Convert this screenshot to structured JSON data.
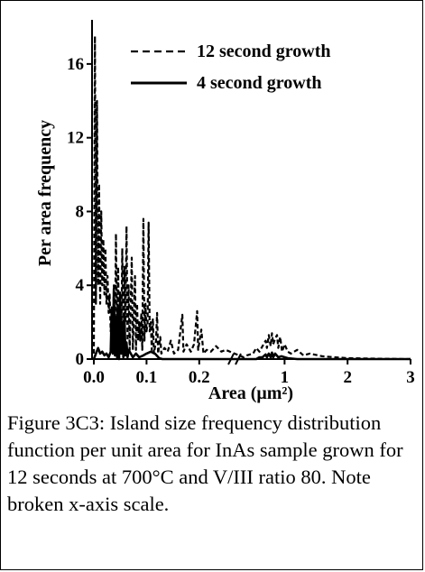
{
  "chart_data": {
    "type": "line",
    "x_axis": {
      "label": "Area (μm²)",
      "scale": "broken",
      "segments": [
        {
          "range": [
            0.0,
            0.25
          ],
          "ticks": [
            "0.0",
            "0.1",
            "0.2"
          ],
          "tick_values": [
            0.0,
            0.1,
            0.2
          ]
        },
        {
          "range": [
            0.35,
            3.0
          ],
          "ticks": [
            "1",
            "2",
            "3"
          ],
          "tick_values": [
            1,
            2,
            3
          ]
        }
      ]
    },
    "y_axis": {
      "label": "Per area frequency",
      "ticks": [
        "0",
        "4",
        "8",
        "12",
        "16"
      ],
      "tick_values": [
        0,
        4,
        8,
        12,
        16
      ],
      "range": [
        0,
        18
      ]
    },
    "legend_position": "top-right",
    "grid": false,
    "series": [
      {
        "name": "12 second growth",
        "style": "dashed",
        "points": [
          [
            0.0,
            0.3
          ],
          [
            0.002,
            17.5
          ],
          [
            0.004,
            3.0
          ],
          [
            0.006,
            14.0
          ],
          [
            0.008,
            4.0
          ],
          [
            0.01,
            9.5
          ],
          [
            0.012,
            3.0
          ],
          [
            0.014,
            8.0
          ],
          [
            0.016,
            4.0
          ],
          [
            0.018,
            6.5
          ],
          [
            0.02,
            3.5
          ],
          [
            0.022,
            6.0
          ],
          [
            0.024,
            3.0
          ],
          [
            0.026,
            4.5
          ],
          [
            0.028,
            2.5
          ],
          [
            0.03,
            3.5
          ],
          [
            0.032,
            1.5
          ],
          [
            0.034,
            2.5
          ],
          [
            0.036,
            1.0
          ],
          [
            0.038,
            4.0
          ],
          [
            0.04,
            0.8
          ],
          [
            0.042,
            6.8
          ],
          [
            0.044,
            1.0
          ],
          [
            0.046,
            5.0
          ],
          [
            0.048,
            1.5
          ],
          [
            0.05,
            3.5
          ],
          [
            0.052,
            0.8
          ],
          [
            0.054,
            6.0
          ],
          [
            0.056,
            1.0
          ],
          [
            0.058,
            5.0
          ],
          [
            0.06,
            2.0
          ],
          [
            0.062,
            7.2
          ],
          [
            0.064,
            1.0
          ],
          [
            0.066,
            4.0
          ],
          [
            0.068,
            0.5
          ],
          [
            0.07,
            3.0
          ],
          [
            0.072,
            5.5
          ],
          [
            0.074,
            0.5
          ],
          [
            0.076,
            2.5
          ],
          [
            0.078,
            4.5
          ],
          [
            0.08,
            0.5
          ],
          [
            0.082,
            3.0
          ],
          [
            0.084,
            1.0
          ],
          [
            0.086,
            2.0
          ],
          [
            0.088,
            1.0
          ],
          [
            0.09,
            2.5
          ],
          [
            0.092,
            0.5
          ],
          [
            0.094,
            7.6
          ],
          [
            0.096,
            1.0
          ],
          [
            0.098,
            3.0
          ],
          [
            0.1,
            1.5
          ],
          [
            0.102,
            2.0
          ],
          [
            0.104,
            7.4
          ],
          [
            0.106,
            1.5
          ],
          [
            0.108,
            2.0
          ],
          [
            0.11,
            0.5
          ],
          [
            0.112,
            2.2
          ],
          [
            0.114,
            0.3
          ],
          [
            0.118,
            1.0
          ],
          [
            0.12,
            2.5
          ],
          [
            0.122,
            0.3
          ],
          [
            0.126,
            1.2
          ],
          [
            0.128,
            0.3
          ],
          [
            0.134,
            0.6
          ],
          [
            0.14,
            0.4
          ],
          [
            0.146,
            1.0
          ],
          [
            0.152,
            0.3
          ],
          [
            0.16,
            0.5
          ],
          [
            0.168,
            2.4
          ],
          [
            0.17,
            0.4
          ],
          [
            0.176,
            0.8
          ],
          [
            0.184,
            0.4
          ],
          [
            0.19,
            0.8
          ],
          [
            0.196,
            2.6
          ],
          [
            0.198,
            0.5
          ],
          [
            0.204,
            1.6
          ],
          [
            0.208,
            0.3
          ],
          [
            0.214,
            0.5
          ],
          [
            0.222,
            0.4
          ],
          [
            0.232,
            0.7
          ],
          [
            0.242,
            0.4
          ],
          [
            0.25,
            0.5
          ],
          [
            0.35,
            0.1
          ],
          [
            0.4,
            0.2
          ],
          [
            0.5,
            0.3
          ],
          [
            0.55,
            0.6
          ],
          [
            0.6,
            0.4
          ],
          [
            0.65,
            0.7
          ],
          [
            0.7,
            1.0
          ],
          [
            0.72,
            0.6
          ],
          [
            0.75,
            1.3
          ],
          [
            0.78,
            0.7
          ],
          [
            0.8,
            1.4
          ],
          [
            0.82,
            0.8
          ],
          [
            0.85,
            1.1
          ],
          [
            0.88,
            1.3
          ],
          [
            0.9,
            0.6
          ],
          [
            0.93,
            1.2
          ],
          [
            0.96,
            0.4
          ],
          [
            1.0,
            0.8
          ],
          [
            1.05,
            0.4
          ],
          [
            1.1,
            0.3
          ],
          [
            1.2,
            0.5
          ],
          [
            1.3,
            0.2
          ],
          [
            1.4,
            0.3
          ],
          [
            1.6,
            0.15
          ],
          [
            1.8,
            0.1
          ],
          [
            2.0,
            0.05
          ],
          [
            2.5,
            0.02
          ],
          [
            3.0,
            0.0
          ]
        ]
      },
      {
        "name": "4 second growth",
        "style": "solid",
        "points": [
          [
            0.0,
            0.0
          ],
          [
            0.004,
            0.3
          ],
          [
            0.008,
            0.6
          ],
          [
            0.012,
            0.3
          ],
          [
            0.016,
            0.4
          ],
          [
            0.02,
            0.2
          ],
          [
            0.024,
            0.3
          ],
          [
            0.028,
            0.1
          ],
          [
            0.032,
            0.4
          ],
          [
            0.034,
            2.8
          ],
          [
            0.036,
            0.3
          ],
          [
            0.038,
            3.8
          ],
          [
            0.04,
            0.2
          ],
          [
            0.042,
            2.2
          ],
          [
            0.044,
            0.1
          ],
          [
            0.046,
            2.8
          ],
          [
            0.048,
            0.0
          ],
          [
            0.05,
            3.6
          ],
          [
            0.052,
            0.3
          ],
          [
            0.054,
            2.0
          ],
          [
            0.056,
            0.1
          ],
          [
            0.058,
            2.5
          ],
          [
            0.06,
            0.2
          ],
          [
            0.062,
            0.9
          ],
          [
            0.064,
            0.1
          ],
          [
            0.066,
            0.5
          ],
          [
            0.07,
            0.3
          ],
          [
            0.074,
            0.1
          ],
          [
            0.08,
            0.3
          ],
          [
            0.086,
            0.1
          ],
          [
            0.094,
            0.2
          ],
          [
            0.1,
            0.3
          ],
          [
            0.108,
            0.4
          ],
          [
            0.116,
            0.3
          ],
          [
            0.124,
            0.05
          ],
          [
            0.13,
            0.0
          ],
          [
            0.25,
            0.0
          ],
          [
            0.35,
            0.0
          ],
          [
            0.55,
            0.0
          ],
          [
            0.6,
            0.1
          ],
          [
            0.65,
            0.1
          ],
          [
            0.7,
            0.25
          ],
          [
            0.72,
            0.1
          ],
          [
            0.75,
            0.3
          ],
          [
            0.78,
            0.1
          ],
          [
            0.8,
            0.35
          ],
          [
            0.82,
            0.1
          ],
          [
            0.85,
            0.3
          ],
          [
            0.9,
            0.1
          ],
          [
            0.95,
            0.15
          ],
          [
            1.05,
            0.05
          ],
          [
            1.2,
            0.0
          ],
          [
            3.0,
            0.0
          ]
        ]
      }
    ]
  },
  "caption": "Figure 3C3: Island size frequency distribution function per unit area for InAs sample grown for 12 seconds at 700°C and V/III ratio 80. Note broken x-axis scale."
}
